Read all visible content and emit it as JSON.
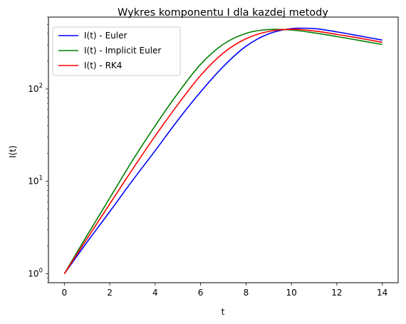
{
  "chart_data": {
    "type": "line",
    "title": "Wykres komponentu I dla kazdej metody",
    "xlabel": "t",
    "ylabel": "I(t)",
    "xlim": [
      -0.7,
      14.7
    ],
    "ylim": [
      0.8,
      600
    ],
    "yscale": "log",
    "grid": false,
    "legend_position": "top-left",
    "xticks": [
      0,
      2,
      4,
      6,
      8,
      10,
      12,
      14
    ],
    "xtick_labels": [
      "0",
      "2",
      "4",
      "6",
      "8",
      "10",
      "12",
      "14"
    ],
    "yticks": [
      1,
      10,
      100
    ],
    "ytick_labels": [
      {
        "base": "10",
        "exp": "0"
      },
      {
        "base": "10",
        "exp": "1"
      },
      {
        "base": "10",
        "exp": "2"
      }
    ],
    "series": [
      {
        "name": "I(t) - Euler",
        "color": "#0000ff",
        "x": [
          0,
          1,
          2,
          3,
          4,
          5,
          6,
          7,
          8,
          9,
          10,
          11,
          12,
          13,
          14
        ],
        "y": [
          1,
          2.2,
          4.7,
          10.2,
          21.5,
          46,
          93,
          175,
          290,
          395,
          450,
          450,
          415,
          375,
          338
        ]
      },
      {
        "name": "I(t) - Implicit Euler",
        "color": "#008000",
        "x": [
          0,
          1,
          2,
          3,
          4,
          5,
          6,
          7,
          8,
          9,
          10,
          11,
          12,
          13,
          14
        ],
        "y": [
          1,
          2.6,
          6.6,
          16.8,
          40,
          90,
          185,
          305,
          400,
          440,
          435,
          405,
          370,
          335,
          303
        ]
      },
      {
        "name": "I(t) - RK4",
        "color": "#ff0000",
        "x": [
          0,
          1,
          2,
          3,
          4,
          5,
          6,
          7,
          8,
          9,
          10,
          11,
          12,
          13,
          14
        ],
        "y": [
          1,
          2.4,
          5.7,
          13.5,
          31,
          68,
          140,
          245,
          350,
          420,
          443,
          425,
          390,
          355,
          320
        ]
      }
    ]
  }
}
